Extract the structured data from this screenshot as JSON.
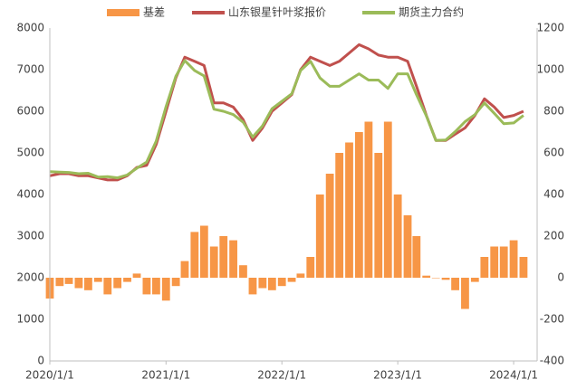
{
  "chart_data": {
    "type": "bar-line",
    "x": [
      "2020/1/1",
      "2020/2/1",
      "2020/3/1",
      "2020/4/1",
      "2020/5/1",
      "2020/6/1",
      "2020/7/1",
      "2020/8/1",
      "2020/9/1",
      "2020/10/1",
      "2020/11/1",
      "2020/12/1",
      "2021/1/1",
      "2021/2/1",
      "2021/3/1",
      "2021/4/1",
      "2021/5/1",
      "2021/6/1",
      "2021/7/1",
      "2021/8/1",
      "2021/9/1",
      "2021/10/1",
      "2021/11/1",
      "2021/12/1",
      "2022/1/1",
      "2022/2/1",
      "2022/3/1",
      "2022/4/1",
      "2022/5/1",
      "2022/6/1",
      "2022/7/1",
      "2022/8/1",
      "2022/9/1",
      "2022/10/1",
      "2022/11/1",
      "2022/12/1",
      "2023/1/1",
      "2023/2/1",
      "2023/3/1",
      "2023/4/1",
      "2023/5/1",
      "2023/6/1",
      "2023/7/1",
      "2023/8/1",
      "2023/9/1",
      "2023/10/1",
      "2023/11/1",
      "2023/12/1",
      "2024/1/1",
      "2024/2/1"
    ],
    "series": [
      {
        "name": "基差",
        "color": "#f79646",
        "axis": "y2",
        "kind": "bar",
        "values": [
          -100,
          -40,
          -30,
          -50,
          -60,
          -20,
          -80,
          -50,
          -20,
          20,
          -80,
          -80,
          -110,
          -40,
          80,
          220,
          250,
          150,
          200,
          180,
          60,
          -80,
          -50,
          -60,
          -40,
          -20,
          20,
          100,
          400,
          500,
          600,
          650,
          700,
          750,
          600,
          750,
          400,
          300,
          200,
          10,
          0,
          -10,
          -60,
          -150,
          -20,
          100,
          150,
          150,
          180,
          100
        ]
      },
      {
        "name": "山东银星针叶浆报价",
        "color": "#c0504d",
        "kind": "line",
        "values": [
          4450,
          4500,
          4500,
          4450,
          4450,
          4400,
          4350,
          4350,
          4450,
          4650,
          4700,
          5200,
          6000,
          6800,
          7300,
          7200,
          7100,
          6200,
          6200,
          6100,
          5800,
          5300,
          5600,
          6000,
          6200,
          6400,
          7000,
          7300,
          7200,
          7100,
          7200,
          7400,
          7600,
          7500,
          7350,
          7300,
          7300,
          7200,
          6600,
          5900,
          5300,
          5300,
          5450,
          5600,
          5900,
          6300,
          6100,
          5850,
          5900,
          6000
        ]
      },
      {
        "name": "期货主力合约",
        "color": "#9bbb59",
        "kind": "line",
        "values": [
          4550,
          4540,
          4530,
          4500,
          4510,
          4420,
          4430,
          4400,
          4470,
          4630,
          4780,
          5280,
          6110,
          6840,
          7220,
          6980,
          6850,
          6050,
          6000,
          5920,
          5740,
          5380,
          5650,
          6060,
          6240,
          6420,
          6980,
          7200,
          6800,
          6600,
          6600,
          6750,
          6900,
          6750,
          6750,
          6550,
          6900,
          6900,
          6400,
          5890,
          5300,
          5310,
          5510,
          5750,
          5920,
          6200,
          5950,
          5700,
          5720,
          5900
        ]
      }
    ],
    "xlim": [
      "2020/1/1",
      "2024/3/15"
    ],
    "xticks": [
      "2020/1/1",
      "2021/1/1",
      "2022/1/1",
      "2023/1/1",
      "2024/1/1"
    ],
    "ylim": [
      0,
      8000
    ],
    "yticks": [
      0,
      1000,
      2000,
      3000,
      4000,
      5000,
      6000,
      7000,
      8000
    ],
    "y2lim": [
      -400,
      1200
    ],
    "y2ticks": [
      -400,
      -200,
      0,
      200,
      400,
      600,
      800,
      1000,
      1200
    ]
  }
}
